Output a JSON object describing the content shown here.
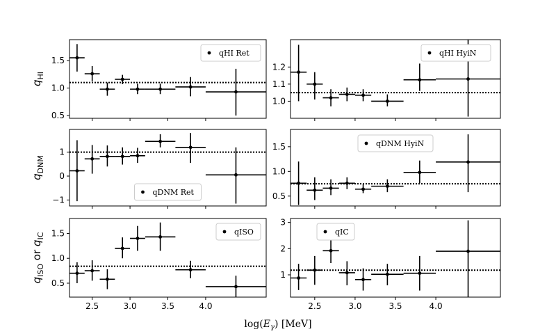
{
  "figure": {
    "xlabel": "log(E_γ) [MeV]",
    "xlabel_parts": [
      "log(",
      "E",
      "γ",
      ") [MeV]"
    ]
  },
  "chart_data": [
    {
      "type": "scatter",
      "id": "qhi-ret",
      "ylabel": [
        "q",
        "HI"
      ],
      "legend": "qHI Ret",
      "legend_position": "top-right",
      "xlim": [
        2.2,
        4.8
      ],
      "ylim": [
        0.45,
        1.88
      ],
      "xticks": [
        2.5,
        3.0,
        3.5,
        4.0
      ],
      "xticklabels": [
        "2.5",
        "3.0",
        "3.5",
        "4.0"
      ],
      "yticks": [
        0.5,
        1.0,
        1.5
      ],
      "yticklabels": [
        "0.5",
        "1.0",
        "1.5"
      ],
      "reference_line": 1.1,
      "points": [
        {
          "x": 2.3,
          "xlo": 2.2,
          "xhi": 2.4,
          "y": 1.55,
          "ylo": 1.3,
          "yhi": 1.8
        },
        {
          "x": 2.5,
          "xlo": 2.4,
          "xhi": 2.6,
          "y": 1.26,
          "ylo": 1.12,
          "yhi": 1.4
        },
        {
          "x": 2.7,
          "xlo": 2.6,
          "xhi": 2.8,
          "y": 0.98,
          "ylo": 0.86,
          "yhi": 1.1
        },
        {
          "x": 2.9,
          "xlo": 2.8,
          "xhi": 3.0,
          "y": 1.16,
          "ylo": 1.07,
          "yhi": 1.24
        },
        {
          "x": 3.1,
          "xlo": 3.0,
          "xhi": 3.2,
          "y": 0.98,
          "ylo": 0.89,
          "yhi": 1.08
        },
        {
          "x": 3.4,
          "xlo": 3.2,
          "xhi": 3.6,
          "y": 0.98,
          "ylo": 0.89,
          "yhi": 1.08
        },
        {
          "x": 3.8,
          "xlo": 3.6,
          "xhi": 4.0,
          "y": 1.02,
          "ylo": 0.85,
          "yhi": 1.2
        },
        {
          "x": 4.4,
          "xlo": 4.0,
          "xhi": 4.8,
          "y": 0.93,
          "ylo": 0.5,
          "yhi": 1.35
        }
      ]
    },
    {
      "type": "scatter",
      "id": "qhi-hyin",
      "ylabel": null,
      "legend": "qHI HyiN",
      "legend_position": "top-right",
      "xlim": [
        2.2,
        4.8
      ],
      "ylim": [
        0.9,
        1.36
      ],
      "xticks": [
        2.5,
        3.0,
        3.5,
        4.0
      ],
      "xticklabels": [
        "2.5",
        "3.0",
        "3.5",
        "4.0"
      ],
      "yticks": [
        1.0,
        1.1,
        1.2
      ],
      "yticklabels": [
        "1.0",
        "1.1",
        "1.2"
      ],
      "reference_line": 1.05,
      "points": [
        {
          "x": 2.3,
          "xlo": 2.2,
          "xhi": 2.4,
          "y": 1.17,
          "ylo": 1.0,
          "yhi": 1.33
        },
        {
          "x": 2.5,
          "xlo": 2.4,
          "xhi": 2.6,
          "y": 1.1,
          "ylo": 1.01,
          "yhi": 1.17
        },
        {
          "x": 2.7,
          "xlo": 2.6,
          "xhi": 2.8,
          "y": 1.02,
          "ylo": 0.97,
          "yhi": 1.07
        },
        {
          "x": 2.9,
          "xlo": 2.8,
          "xhi": 3.0,
          "y": 1.04,
          "ylo": 1.0,
          "yhi": 1.08
        },
        {
          "x": 3.1,
          "xlo": 3.0,
          "xhi": 3.2,
          "y": 1.035,
          "ylo": 1.0,
          "yhi": 1.07
        },
        {
          "x": 3.4,
          "xlo": 3.2,
          "xhi": 3.6,
          "y": 1.0,
          "ylo": 0.97,
          "yhi": 1.04
        },
        {
          "x": 3.8,
          "xlo": 3.6,
          "xhi": 4.0,
          "y": 1.125,
          "ylo": 1.06,
          "yhi": 1.22
        },
        {
          "x": 4.4,
          "xlo": 4.0,
          "xhi": 4.8,
          "y": 1.13,
          "ylo": 0.91,
          "yhi": 1.36
        }
      ]
    },
    {
      "type": "scatter",
      "id": "qdnm-ret",
      "ylabel": [
        "q",
        "DNM"
      ],
      "legend": "qDNM Ret",
      "legend_position": "bottom-center",
      "xlim": [
        2.2,
        4.8
      ],
      "ylim": [
        -1.25,
        1.95
      ],
      "xticks": [
        2.5,
        3.0,
        3.5,
        4.0
      ],
      "xticklabels": [
        "2.5",
        "3.0",
        "3.5",
        "4.0"
      ],
      "yticks": [
        -1,
        0,
        1
      ],
      "yticklabels": [
        "−1",
        "0",
        "1"
      ],
      "reference_line": 1.0,
      "points": [
        {
          "x": 2.3,
          "xlo": 2.2,
          "xhi": 2.4,
          "y": 0.22,
          "ylo": -1.05,
          "yhi": 1.5
        },
        {
          "x": 2.5,
          "xlo": 2.4,
          "xhi": 2.6,
          "y": 0.72,
          "ylo": 0.1,
          "yhi": 1.3
        },
        {
          "x": 2.7,
          "xlo": 2.6,
          "xhi": 2.8,
          "y": 0.82,
          "ylo": 0.4,
          "yhi": 1.28
        },
        {
          "x": 2.9,
          "xlo": 2.8,
          "xhi": 3.0,
          "y": 0.82,
          "ylo": 0.48,
          "yhi": 1.2
        },
        {
          "x": 3.1,
          "xlo": 3.0,
          "xhi": 3.2,
          "y": 0.85,
          "ylo": 0.55,
          "yhi": 1.18
        },
        {
          "x": 3.4,
          "xlo": 3.2,
          "xhi": 3.6,
          "y": 1.45,
          "ylo": 1.2,
          "yhi": 1.75
        },
        {
          "x": 3.8,
          "xlo": 3.6,
          "xhi": 4.0,
          "y": 1.2,
          "ylo": 0.55,
          "yhi": 1.8
        },
        {
          "x": 4.4,
          "xlo": 4.0,
          "xhi": 4.8,
          "y": 0.05,
          "ylo": -1.15,
          "yhi": 1.2
        }
      ]
    },
    {
      "type": "scatter",
      "id": "qdnm-hyin",
      "ylabel": null,
      "legend": "qDNM HyiN",
      "legend_position": "top-center",
      "xlim": [
        2.2,
        4.8
      ],
      "ylim": [
        0.3,
        1.85
      ],
      "xticks": [
        2.5,
        3.0,
        3.5,
        4.0
      ],
      "xticklabels": [
        "2.5",
        "3.0",
        "3.5",
        "4.0"
      ],
      "yticks": [
        0.5,
        1.0,
        1.5
      ],
      "yticklabels": [
        "0.5",
        "1.0",
        "1.5"
      ],
      "reference_line": 0.75,
      "points": [
        {
          "x": 2.3,
          "xlo": 2.2,
          "xhi": 2.4,
          "y": 0.76,
          "ylo": 0.32,
          "yhi": 1.2
        },
        {
          "x": 2.5,
          "xlo": 2.4,
          "xhi": 2.6,
          "y": 0.62,
          "ylo": 0.42,
          "yhi": 0.88
        },
        {
          "x": 2.7,
          "xlo": 2.6,
          "xhi": 2.8,
          "y": 0.66,
          "ylo": 0.52,
          "yhi": 0.84
        },
        {
          "x": 2.9,
          "xlo": 2.8,
          "xhi": 3.0,
          "y": 0.76,
          "ylo": 0.64,
          "yhi": 0.88
        },
        {
          "x": 3.1,
          "xlo": 3.0,
          "xhi": 3.2,
          "y": 0.64,
          "ylo": 0.56,
          "yhi": 0.74
        },
        {
          "x": 3.4,
          "xlo": 3.2,
          "xhi": 3.6,
          "y": 0.7,
          "ylo": 0.58,
          "yhi": 0.84
        },
        {
          "x": 3.8,
          "xlo": 3.6,
          "xhi": 4.0,
          "y": 0.98,
          "ylo": 0.76,
          "yhi": 1.22
        },
        {
          "x": 4.4,
          "xlo": 4.0,
          "xhi": 4.8,
          "y": 1.19,
          "ylo": 0.58,
          "yhi": 1.75
        }
      ]
    },
    {
      "type": "scatter",
      "id": "qiso",
      "ylabel": [
        "q",
        "ISO",
        " or ",
        "q",
        "IC"
      ],
      "legend": "qISO",
      "legend_position": "top-right",
      "xlim": [
        2.2,
        4.8
      ],
      "ylim": [
        0.22,
        1.8
      ],
      "xticks": [
        2.5,
        3.0,
        3.5,
        4.0
      ],
      "xticklabels": [
        "2.5",
        "3.0",
        "3.5",
        "4.0"
      ],
      "yticks": [
        0.5,
        1.0,
        1.5
      ],
      "yticklabels": [
        "0.5",
        "1.0",
        "1.5"
      ],
      "reference_line": 0.84,
      "points": [
        {
          "x": 2.3,
          "xlo": 2.2,
          "xhi": 2.4,
          "y": 0.7,
          "ylo": 0.5,
          "yhi": 0.92
        },
        {
          "x": 2.5,
          "xlo": 2.4,
          "xhi": 2.6,
          "y": 0.75,
          "ylo": 0.55,
          "yhi": 0.96
        },
        {
          "x": 2.7,
          "xlo": 2.6,
          "xhi": 2.8,
          "y": 0.58,
          "ylo": 0.38,
          "yhi": 0.78
        },
        {
          "x": 2.9,
          "xlo": 2.8,
          "xhi": 3.0,
          "y": 1.2,
          "ylo": 1.0,
          "yhi": 1.42
        },
        {
          "x": 3.1,
          "xlo": 3.0,
          "xhi": 3.2,
          "y": 1.4,
          "ylo": 1.15,
          "yhi": 1.65
        },
        {
          "x": 3.4,
          "xlo": 3.2,
          "xhi": 3.6,
          "y": 1.43,
          "ylo": 1.15,
          "yhi": 1.72
        },
        {
          "x": 3.8,
          "xlo": 3.6,
          "xhi": 4.0,
          "y": 0.77,
          "ylo": 0.6,
          "yhi": 0.95
        },
        {
          "x": 4.4,
          "xlo": 4.0,
          "xhi": 4.8,
          "y": 0.43,
          "ylo": 0.22,
          "yhi": 0.65
        }
      ]
    },
    {
      "type": "scatter",
      "id": "qic",
      "ylabel": null,
      "legend": "qIC",
      "legend_position": "top-left",
      "xlim": [
        2.2,
        4.8
      ],
      "ylim": [
        0.15,
        3.15
      ],
      "xticks": [
        2.5,
        3.0,
        3.5,
        4.0
      ],
      "xticklabels": [
        "2.5",
        "3.0",
        "3.5",
        "4.0"
      ],
      "yticks": [
        1,
        2,
        3
      ],
      "yticklabels": [
        "1",
        "2",
        "3"
      ],
      "reference_line": 1.18,
      "points": [
        {
          "x": 2.3,
          "xlo": 2.2,
          "xhi": 2.4,
          "y": 0.88,
          "ylo": 0.42,
          "yhi": 1.42
        },
        {
          "x": 2.5,
          "xlo": 2.4,
          "xhi": 2.6,
          "y": 1.18,
          "ylo": 0.62,
          "yhi": 1.72
        },
        {
          "x": 2.7,
          "xlo": 2.6,
          "xhi": 2.8,
          "y": 1.92,
          "ylo": 1.45,
          "yhi": 2.4
        },
        {
          "x": 2.9,
          "xlo": 2.8,
          "xhi": 3.0,
          "y": 1.08,
          "ylo": 0.6,
          "yhi": 1.52
        },
        {
          "x": 3.1,
          "xlo": 3.0,
          "xhi": 3.2,
          "y": 0.82,
          "ylo": 0.4,
          "yhi": 1.25
        },
        {
          "x": 3.4,
          "xlo": 3.2,
          "xhi": 3.6,
          "y": 1.02,
          "ylo": 0.6,
          "yhi": 1.42
        },
        {
          "x": 3.8,
          "xlo": 3.6,
          "xhi": 4.0,
          "y": 1.06,
          "ylo": 0.4,
          "yhi": 1.72
        },
        {
          "x": 4.4,
          "xlo": 4.0,
          "xhi": 4.8,
          "y": 1.9,
          "ylo": 0.15,
          "yhi": 3.08
        }
      ]
    }
  ]
}
